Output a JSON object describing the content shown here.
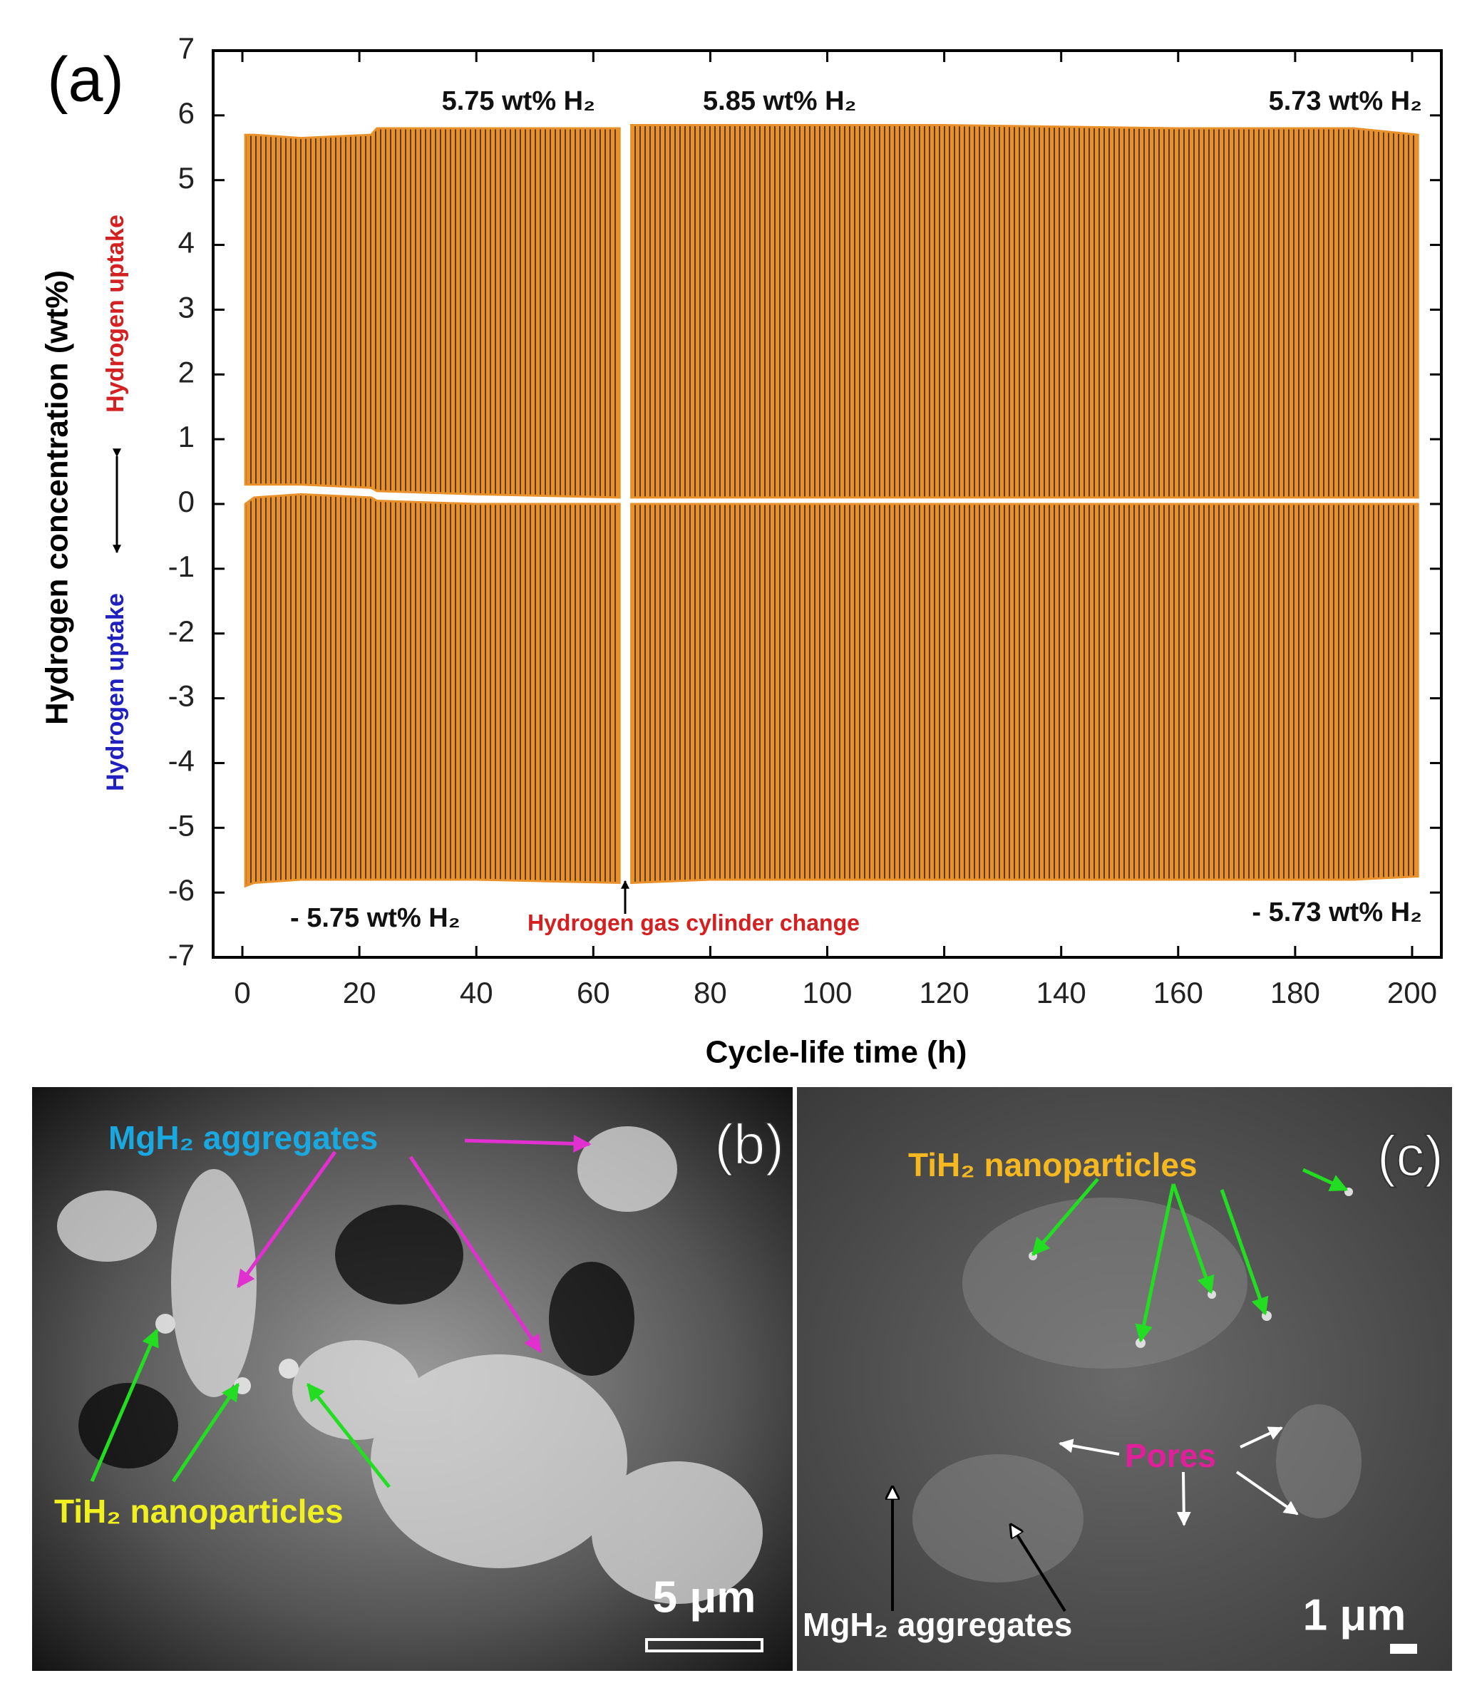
{
  "chart_data": {
    "type": "area",
    "panel_label": "(a)",
    "x_label": "Cycle-life time (h)",
    "y_label": "Hydrogen concentration (wt%)",
    "y_label_upper": "Hydrogen uptake",
    "y_label_lower": "Hydrogen uptake",
    "annotations": [
      "5.75 wt% H₂",
      "5.85 wt% H₂",
      "5.73 wt% H₂",
      "- 5.75 wt% H₂",
      "- 5.73 wt% H₂",
      "Hydrogen gas cylinder change"
    ],
    "x": [
      0.5,
      2,
      10,
      22,
      23,
      40,
      64.5,
      65.5,
      66.5,
      80,
      120,
      160,
      190,
      201
    ],
    "series": [
      {
        "color": "#e8902a",
        "values": [
          5.7,
          5.7,
          5.65,
          5.7,
          5.8,
          5.8,
          5.8,
          null,
          5.85,
          5.85,
          5.85,
          5.8,
          5.8,
          5.7
        ]
      },
      {
        "color": "#e8902a",
        "values": [
          0.3,
          0.3,
          0.3,
          0.25,
          0.2,
          0.15,
          0.1,
          null,
          0.1,
          0.1,
          0.1,
          0.1,
          0.1,
          0.1
        ]
      },
      {
        "color": "#e8902a",
        "values": [
          0,
          0.1,
          0.15,
          0.1,
          0.05,
          0,
          0,
          null,
          0,
          0,
          0,
          0,
          0,
          0
        ]
      },
      {
        "color": "#e8902a",
        "values": [
          -5.9,
          -5.85,
          -5.8,
          -5.8,
          -5.8,
          -5.8,
          -5.85,
          null,
          -5.85,
          -5.8,
          -5.8,
          -5.8,
          -5.8,
          -5.75
        ]
      }
    ],
    "xlim": [
      -5,
      205
    ],
    "xticks": [
      0,
      20,
      40,
      60,
      80,
      100,
      120,
      140,
      160,
      180,
      200
    ],
    "ylim": [
      -7,
      7
    ],
    "yticks": [
      -7,
      -6,
      -5,
      -4,
      -3,
      -2,
      -1,
      0,
      1,
      2,
      3,
      4,
      5,
      6,
      7
    ]
  },
  "panels": [
    {
      "label": "(b)",
      "annotations": [
        "MgH₂ aggregates",
        "TiH₂ nanoparticles"
      ],
      "scale_bar": "5 μm"
    },
    {
      "label": "(c)",
      "annotations": [
        "TiH₂ nanoparticles",
        "Pores",
        "MgH₂ aggregates"
      ],
      "scale_bar": "1 μm"
    }
  ]
}
